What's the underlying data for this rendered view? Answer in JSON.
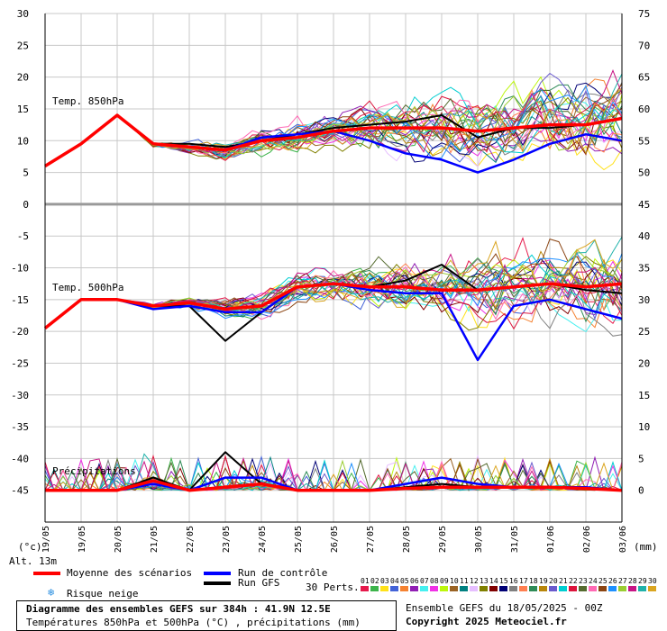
{
  "colors": {
    "mean": "#ff0000",
    "control": "#0000ff",
    "gfs": "#000000",
    "grid": "#c8c8c8",
    "separator": "#999999"
  },
  "legend": {
    "mean_label": "Moyenne des scénarios",
    "control_label": "Run de contrôle",
    "gfs_label": "Run GFS",
    "snow_label": "Risque neige",
    "snow_icon": "snowflake-icon",
    "perts_label": "30 Perts."
  },
  "corner": {
    "left_unit": "(°c)",
    "right_unit": "(mm)",
    "altitude": "Alt. 13m"
  },
  "footer": {
    "title": "Diagramme des ensembles GEFS sur 384h : 41.9N 12.5E",
    "subtitle": "Températures 850hPa et 500hPa (°C) , précipitations (mm)",
    "run_info": "Ensemble GEFS du 18/05/2025 - 00Z",
    "copyright": "Copyright 2025 Meteociel.fr"
  },
  "members": {
    "labels": [
      "01",
      "02",
      "03",
      "04",
      "05",
      "06",
      "07",
      "08",
      "09",
      "10",
      "11",
      "12",
      "13",
      "14",
      "15",
      "16",
      "17",
      "18",
      "19",
      "20",
      "21",
      "22",
      "23",
      "24",
      "25",
      "26",
      "27",
      "28",
      "29",
      "30"
    ],
    "colors": [
      "#e6194b",
      "#3cb44b",
      "#ffe119",
      "#4363d8",
      "#f58231",
      "#911eb4",
      "#46f0f0",
      "#f032e6",
      "#bcf60c",
      "#9a6324",
      "#008080",
      "#e6beff",
      "#808000",
      "#800000",
      "#000075",
      "#808080",
      "#ff7f50",
      "#2e8b57",
      "#b8860b",
      "#6a5acd",
      "#00ced1",
      "#dc143c",
      "#556b2f",
      "#ff69b4",
      "#8b4513",
      "#1e90ff",
      "#9acd32",
      "#c71585",
      "#20b2aa",
      "#daa520"
    ]
  },
  "chart_data": {
    "type": "line",
    "title": "Diagramme des ensembles GEFS sur 384h : 41.9N 12.5E",
    "x_ticks": [
      "19/05",
      "19/05",
      "20/05",
      "21/05",
      "22/05",
      "23/05",
      "24/05",
      "25/05",
      "26/05",
      "27/05",
      "28/05",
      "29/05",
      "30/05",
      "31/05",
      "01/06",
      "02/06",
      "03/06"
    ],
    "left_axis": {
      "label": "(°c)",
      "ticks": [
        30,
        25,
        20,
        15,
        10,
        5,
        0,
        -5,
        -10,
        -15,
        -20,
        -25,
        -30,
        -35,
        -40,
        -45
      ],
      "range": [
        -50,
        30
      ]
    },
    "right_axis": {
      "label": "(mm)",
      "ticks": [
        75,
        70,
        65,
        60,
        55,
        50,
        45,
        40,
        35,
        30,
        25,
        20,
        15,
        10,
        5,
        0
      ],
      "range": [
        -5,
        75
      ]
    },
    "panel_labels": [
      "Temp. 850hPa",
      "Temp. 500hPa",
      "Précipitations"
    ],
    "days": [
      0,
      1,
      2,
      3,
      4,
      5,
      6,
      7,
      8,
      9,
      10,
      11,
      12,
      13,
      14,
      15,
      16
    ],
    "series": [
      {
        "name": "Moyenne des scénarios",
        "panel": "850hPa",
        "values": [
          6,
          9.5,
          14,
          9.5,
          9,
          8.5,
          10,
          10.5,
          11.5,
          12,
          12,
          12,
          11.5,
          12,
          12.5,
          12.5,
          13.5
        ]
      },
      {
        "name": "Run de contrôle",
        "panel": "850hPa",
        "values": [
          6,
          9.5,
          14,
          9.5,
          9,
          8.5,
          10.5,
          11,
          11.5,
          10,
          8,
          7,
          5,
          7,
          9.5,
          11,
          10
        ]
      },
      {
        "name": "Run GFS",
        "panel": "850hPa",
        "values": [
          6,
          9.5,
          14,
          9.5,
          9.5,
          9,
          10,
          11,
          12,
          12.5,
          13,
          14,
          10.5,
          12,
          12,
          12.5,
          13.5
        ]
      },
      {
        "name": "Moyenne des scénarios",
        "panel": "500hPa",
        "values": [
          -19.5,
          -15,
          -15,
          -16,
          -15.5,
          -16.5,
          -16,
          -13,
          -12.5,
          -13,
          -13,
          -13.5,
          -13.5,
          -13,
          -12.5,
          -13,
          -12.5
        ]
      },
      {
        "name": "Run de contrôle",
        "panel": "500hPa",
        "values": [
          -19.5,
          -15,
          -15,
          -16.5,
          -16,
          -17,
          -17,
          -13,
          -12.5,
          -13.5,
          -14,
          -14,
          -24.5,
          -16,
          -15,
          -16.5,
          -18
        ]
      },
      {
        "name": "Run GFS",
        "panel": "500hPa",
        "values": [
          -19.5,
          -15,
          -15,
          -16,
          -16,
          -21.5,
          -17,
          -13,
          -12.5,
          -13,
          -12,
          -9.5,
          -13.5,
          -13,
          -12.5,
          -13.5,
          -14
        ]
      },
      {
        "name": "Moyenne des scénarios",
        "panel": "precip",
        "values": [
          0,
          0,
          0,
          1.5,
          0,
          0.5,
          1,
          0,
          0,
          0,
          0.3,
          0.5,
          0.5,
          0.5,
          0.5,
          0.3,
          0
        ]
      },
      {
        "name": "Run de contrôle",
        "panel": "precip",
        "values": [
          0,
          0,
          0,
          1,
          0,
          2,
          2,
          0,
          0,
          0,
          1,
          2,
          1,
          0.5,
          0.5,
          0.5,
          0
        ]
      },
      {
        "name": "Run GFS",
        "panel": "precip",
        "values": [
          0,
          0,
          0,
          2,
          0,
          6,
          1,
          0,
          0,
          0,
          0.5,
          1,
          0.5,
          0.5,
          0.5,
          0.3,
          0
        ]
      }
    ]
  }
}
